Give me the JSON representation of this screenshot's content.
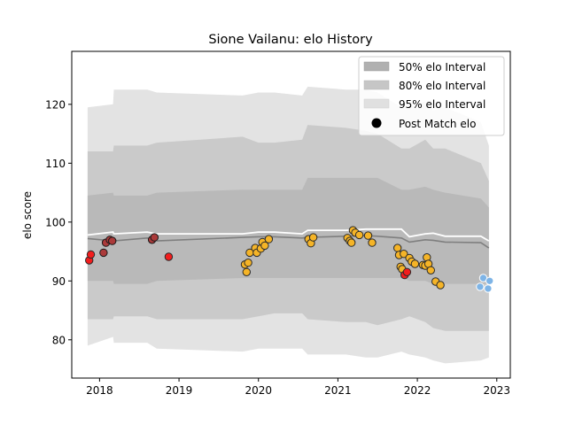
{
  "chart_data": {
    "type": "scatter",
    "title": "Sione Vailanu: elo History",
    "xlabel": "",
    "ylabel": "elo score",
    "xlim": [
      2017.65,
      2023.17
    ],
    "ylim": [
      73.5,
      129.0
    ],
    "x_ticks": [
      2018,
      2019,
      2020,
      2021,
      2022,
      2023
    ],
    "x_tick_labels": [
      "2018",
      "2019",
      "2020",
      "2021",
      "2022",
      "2023"
    ],
    "y_ticks": [
      80,
      90,
      100,
      110,
      120
    ],
    "y_tick_labels": [
      "80",
      "90",
      "100",
      "110",
      "120"
    ],
    "grid": false,
    "legend_position": "top-right",
    "legend": [
      {
        "label": "50% elo Interval",
        "kind": "patch",
        "color": "#b0b0b0"
      },
      {
        "label": "80% elo Interval",
        "kind": "patch",
        "color": "#c6c6c6"
      },
      {
        "label": "95% elo Interval",
        "kind": "patch",
        "color": "#e0e0e0"
      },
      {
        "label": "Post Match elo",
        "kind": "marker",
        "color": "#000000"
      }
    ],
    "band_colors": {
      "b95": "#e3e3e3",
      "b80": "#cacaca",
      "b50": "#b9b9b9"
    },
    "line_colors": {
      "mean": "#7f7f7f",
      "upper": "#ffffff"
    },
    "point_colors": {
      "orange": "#f5b427",
      "red": "#f21d1d",
      "blue": "#7eb4e6",
      "dark": "#ab3a3a",
      "edge_dark": "#2a2a2a",
      "edge_light": "#ffffff"
    },
    "bands": {
      "x": [
        2017.85,
        2018.17,
        2018.18,
        2018.6,
        2018.72,
        2019.8,
        2020.0,
        2020.2,
        2020.55,
        2020.62,
        2021.1,
        2021.35,
        2021.5,
        2021.8,
        2021.9,
        2022.1,
        2022.2,
        2022.35,
        2022.8,
        2022.9
      ],
      "p95_high": [
        119.5,
        120.0,
        122.5,
        122.5,
        122.0,
        121.5,
        122.0,
        122.0,
        121.5,
        123.0,
        122.5,
        122.5,
        122.0,
        119.5,
        119.5,
        120.5,
        119.0,
        119.5,
        117.0,
        113.0
      ],
      "p80_high": [
        112.0,
        112.0,
        113.0,
        113.0,
        113.5,
        114.5,
        113.5,
        113.5,
        114.0,
        116.5,
        116.0,
        115.5,
        115.0,
        112.5,
        112.5,
        114.0,
        112.5,
        112.5,
        110.0,
        107.0
      ],
      "p50_high": [
        104.5,
        105.0,
        104.5,
        104.5,
        105.0,
        105.5,
        105.5,
        105.5,
        105.5,
        107.5,
        107.5,
        107.5,
        107.5,
        105.5,
        105.5,
        106.0,
        105.5,
        105.0,
        104.0,
        102.5
      ],
      "p50_low": [
        90.0,
        90.0,
        89.5,
        89.5,
        90.0,
        90.5,
        90.5,
        90.5,
        90.5,
        90.5,
        90.5,
        90.5,
        90.5,
        90.5,
        90.0,
        90.0,
        89.5,
        89.5,
        89.5,
        89.5
      ],
      "p80_low": [
        83.5,
        83.5,
        84.0,
        84.0,
        83.5,
        83.5,
        84.0,
        84.5,
        84.5,
        83.5,
        83.0,
        83.0,
        82.5,
        83.5,
        84.0,
        83.0,
        82.0,
        81.5,
        81.5,
        81.5
      ],
      "p95_low": [
        79.0,
        80.5,
        79.5,
        79.5,
        78.5,
        78.0,
        78.5,
        78.5,
        78.5,
        77.5,
        77.5,
        77.0,
        77.0,
        78.0,
        77.5,
        77.0,
        76.5,
        76.0,
        76.5,
        77.0
      ],
      "mean": [
        97.2,
        96.8,
        96.8,
        97.3,
        96.8,
        97.4,
        97.5,
        97.5,
        97.3,
        97.4,
        97.6,
        97.7,
        97.6,
        97.3,
        96.6,
        97.0,
        96.9,
        96.6,
        96.5,
        95.6
      ],
      "upper_line": [
        97.8,
        98.3,
        98.0,
        98.3,
        98.0,
        98.0,
        98.3,
        98.3,
        98.0,
        98.6,
        98.6,
        98.8,
        98.8,
        98.8,
        97.5,
        98.0,
        98.1,
        97.6,
        97.6,
        96.8
      ]
    },
    "points": [
      {
        "x": 2017.87,
        "y": 93.5,
        "c": "red"
      },
      {
        "x": 2017.89,
        "y": 94.5,
        "c": "red"
      },
      {
        "x": 2018.05,
        "y": 94.8,
        "c": "dark"
      },
      {
        "x": 2018.08,
        "y": 96.5,
        "c": "dark"
      },
      {
        "x": 2018.13,
        "y": 97.0,
        "c": "dark"
      },
      {
        "x": 2018.16,
        "y": 96.8,
        "c": "dark"
      },
      {
        "x": 2018.66,
        "y": 97.0,
        "c": "dark"
      },
      {
        "x": 2018.69,
        "y": 97.4,
        "c": "dark"
      },
      {
        "x": 2018.87,
        "y": 94.1,
        "c": "red"
      },
      {
        "x": 2019.83,
        "y": 92.8,
        "c": "orange"
      },
      {
        "x": 2019.85,
        "y": 91.5,
        "c": "orange"
      },
      {
        "x": 2019.87,
        "y": 93.1,
        "c": "orange"
      },
      {
        "x": 2019.89,
        "y": 94.8,
        "c": "orange"
      },
      {
        "x": 2019.96,
        "y": 95.6,
        "c": "orange"
      },
      {
        "x": 2019.98,
        "y": 94.8,
        "c": "orange"
      },
      {
        "x": 2020.03,
        "y": 95.5,
        "c": "orange"
      },
      {
        "x": 2020.05,
        "y": 96.6,
        "c": "orange"
      },
      {
        "x": 2020.08,
        "y": 96.0,
        "c": "orange"
      },
      {
        "x": 2020.13,
        "y": 97.1,
        "c": "orange"
      },
      {
        "x": 2020.63,
        "y": 97.1,
        "c": "orange"
      },
      {
        "x": 2020.66,
        "y": 96.4,
        "c": "orange"
      },
      {
        "x": 2020.69,
        "y": 97.4,
        "c": "orange"
      },
      {
        "x": 2021.12,
        "y": 97.3,
        "c": "orange"
      },
      {
        "x": 2021.15,
        "y": 96.8,
        "c": "orange"
      },
      {
        "x": 2021.17,
        "y": 96.5,
        "c": "orange"
      },
      {
        "x": 2021.19,
        "y": 98.6,
        "c": "orange"
      },
      {
        "x": 2021.22,
        "y": 98.2,
        "c": "orange"
      },
      {
        "x": 2021.27,
        "y": 97.8,
        "c": "orange"
      },
      {
        "x": 2021.38,
        "y": 97.7,
        "c": "orange"
      },
      {
        "x": 2021.43,
        "y": 96.5,
        "c": "orange"
      },
      {
        "x": 2021.75,
        "y": 95.6,
        "c": "orange"
      },
      {
        "x": 2021.77,
        "y": 94.4,
        "c": "orange"
      },
      {
        "x": 2021.79,
        "y": 92.4,
        "c": "orange"
      },
      {
        "x": 2021.81,
        "y": 92.0,
        "c": "orange"
      },
      {
        "x": 2021.83,
        "y": 94.6,
        "c": "orange"
      },
      {
        "x": 2021.84,
        "y": 91.0,
        "c": "red"
      },
      {
        "x": 2021.87,
        "y": 91.5,
        "c": "red"
      },
      {
        "x": 2021.9,
        "y": 93.9,
        "c": "orange"
      },
      {
        "x": 2021.93,
        "y": 93.3,
        "c": "orange"
      },
      {
        "x": 2021.97,
        "y": 92.9,
        "c": "orange"
      },
      {
        "x": 2022.07,
        "y": 92.7,
        "c": "orange"
      },
      {
        "x": 2022.1,
        "y": 92.6,
        "c": "orange"
      },
      {
        "x": 2022.12,
        "y": 94.0,
        "c": "orange"
      },
      {
        "x": 2022.14,
        "y": 92.9,
        "c": "orange"
      },
      {
        "x": 2022.17,
        "y": 91.8,
        "c": "orange"
      },
      {
        "x": 2022.23,
        "y": 89.9,
        "c": "orange"
      },
      {
        "x": 2022.29,
        "y": 89.3,
        "c": "orange"
      },
      {
        "x": 2022.79,
        "y": 89.0,
        "c": "blue"
      },
      {
        "x": 2022.83,
        "y": 90.5,
        "c": "blue"
      },
      {
        "x": 2022.89,
        "y": 88.7,
        "c": "blue"
      },
      {
        "x": 2022.91,
        "y": 90.0,
        "c": "blue"
      }
    ]
  }
}
